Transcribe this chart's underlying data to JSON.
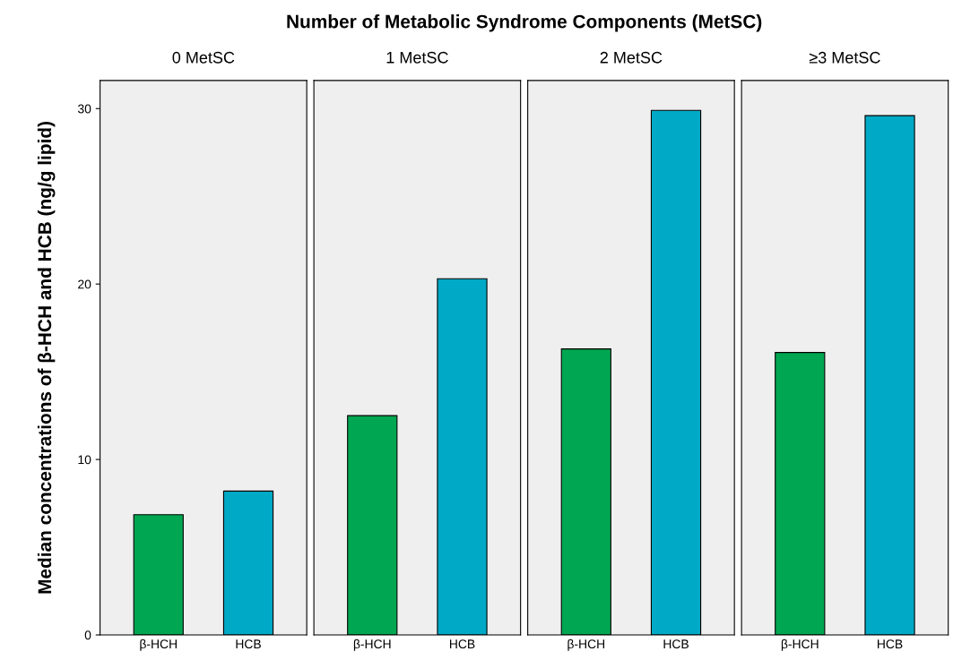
{
  "chart_data": [
    {
      "type": "bar",
      "title": "0 MetSC",
      "ylabel": "Median concentrations of β-HCH and HCB (ng/g lipid)",
      "annotations": [
        "Number of Metabolic Syndrome Components (MetSC)"
      ],
      "categories": [
        "β-HCH",
        "HCB"
      ],
      "values": [
        6.85,
        8.2
      ],
      "colors": [
        "#00a651",
        "#00a9c5"
      ],
      "ylim": [
        0,
        31.6
      ],
      "yticks": [
        0,
        10,
        20,
        30
      ],
      "grid": false
    },
    {
      "type": "bar",
      "title": "1 MetSC",
      "categories": [
        "β-HCH",
        "HCB"
      ],
      "values": [
        12.5,
        20.3
      ],
      "colors": [
        "#00a651",
        "#00a9c5"
      ],
      "ylim": [
        0,
        31.6
      ],
      "yticks": [
        0,
        10,
        20,
        30
      ],
      "grid": false,
      "tick_labels": "x"
    },
    {
      "type": "bar",
      "title": "2 MetSC",
      "categories": [
        "β-HCH",
        "HCB"
      ],
      "values": [
        16.3,
        29.9
      ],
      "colors": [
        "#00a651",
        "#00a9c5"
      ],
      "ylim": [
        0,
        31.6
      ],
      "yticks": [
        0,
        10,
        20,
        30
      ],
      "grid": false,
      "tick_labels": "x"
    },
    {
      "type": "bar",
      "title": "≥3 MetSC",
      "categories": [
        "β-HCH",
        "HCB"
      ],
      "values": [
        16.1,
        29.6
      ],
      "colors": [
        "#00a651",
        "#00a9c5"
      ],
      "ylim": [
        0,
        31.6
      ],
      "yticks": [
        0,
        10,
        20,
        30
      ],
      "grid": false,
      "tick_labels": "x"
    }
  ]
}
